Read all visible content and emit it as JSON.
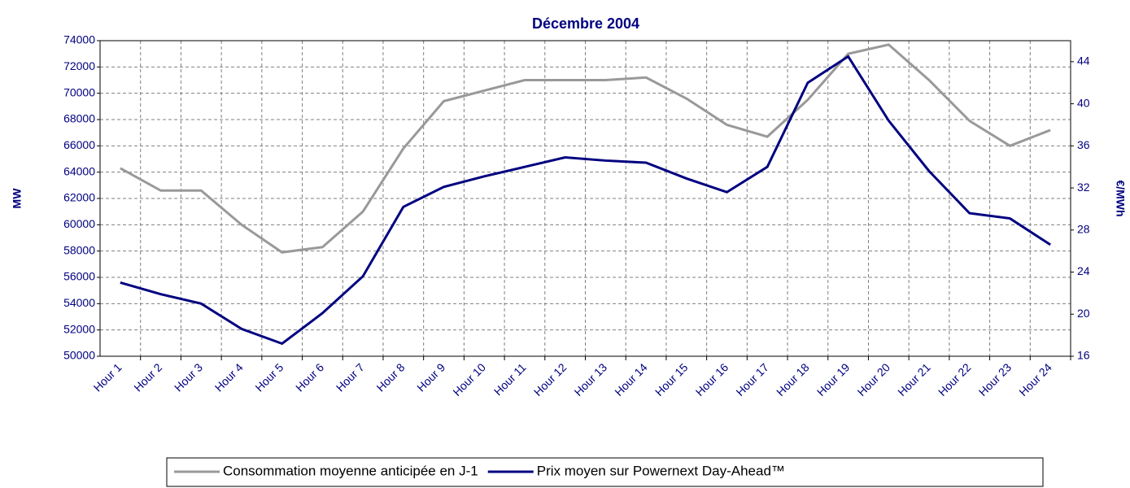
{
  "chart_data": {
    "type": "line",
    "title": "Décembre 2004",
    "y_label": "MW",
    "y2_label": "€/MWh",
    "categories": [
      "Hour 1",
      "Hour 2",
      "Hour 3",
      "Hour 4",
      "Hour 5",
      "Hour 6",
      "Hour 7",
      "Hour 8",
      "Hour 9",
      "Hour 10",
      "Hour 11",
      "Hour 12",
      "Hour 13",
      "Hour 14",
      "Hour 15",
      "Hour 16",
      "Hour 17",
      "Hour 18",
      "Hour 19",
      "Hour 20",
      "Hour 21",
      "Hour 22",
      "Hour 23",
      "Hour 24"
    ],
    "series": [
      {
        "name": "Consommation moyenne anticipée en J-1",
        "color": "#999999",
        "axis": "y",
        "values": [
          64300,
          62600,
          62600,
          60000,
          57900,
          58300,
          61000,
          65800,
          69400,
          70200,
          71000,
          71000,
          71000,
          71200,
          69600,
          67600,
          66700,
          69500,
          73000,
          73700,
          71000,
          67900,
          66000,
          67200
        ]
      },
      {
        "name": "Prix moyen sur Powernext Day-Ahead™",
        "color": "#000080",
        "axis": "y2",
        "values": [
          23.0,
          21.9,
          21.0,
          18.6,
          17.2,
          20.1,
          23.6,
          30.2,
          32.1,
          33.1,
          34.0,
          34.9,
          34.6,
          34.4,
          32.9,
          31.6,
          34.0,
          42.0,
          44.5,
          38.4,
          33.6,
          29.6,
          29.1,
          26.6
        ]
      }
    ],
    "ylim": [
      50000,
      74000
    ],
    "yticks": [
      50000,
      52000,
      54000,
      56000,
      58000,
      60000,
      62000,
      64000,
      66000,
      68000,
      70000,
      72000,
      74000
    ],
    "y2lim": [
      16,
      46
    ],
    "y2ticks": [
      16,
      20,
      24,
      28,
      32,
      36,
      40,
      44
    ],
    "grid": true,
    "legend": "bottom"
  }
}
